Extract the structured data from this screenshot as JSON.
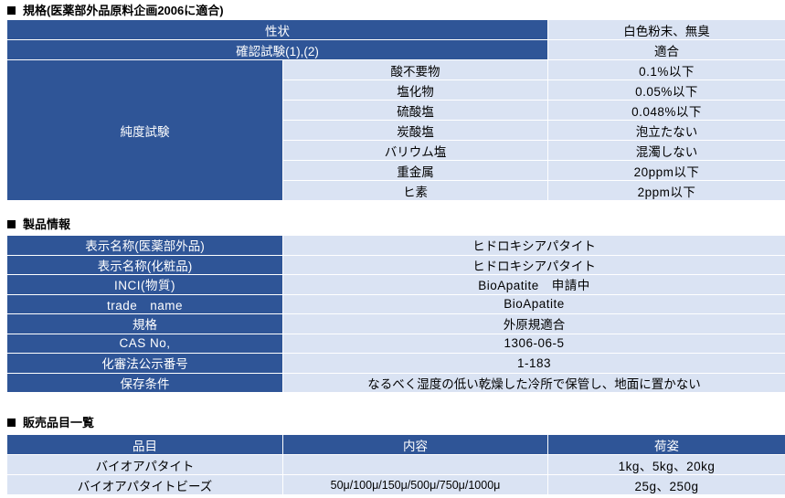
{
  "spec": {
    "title": "規格(医薬部外品原料企画2006に適合)",
    "rows": [
      {
        "label": "性状",
        "value": "白色粉末、無臭"
      },
      {
        "label": "確認試験(1),(2)",
        "value": "適合"
      }
    ],
    "purity": {
      "label": "純度試験",
      "items": [
        {
          "name": "酸不要物",
          "value": "0.1%以下"
        },
        {
          "name": "塩化物",
          "value": "0.05%以下"
        },
        {
          "name": "硫酸塩",
          "value": "0.048%以下"
        },
        {
          "name": "炭酸塩",
          "value": "泡立たない"
        },
        {
          "name": "バリウム塩",
          "value": "混濁しない"
        },
        {
          "name": "重金属",
          "value": "20ppm以下"
        },
        {
          "name": "ヒ素",
          "value": "2ppm以下"
        }
      ]
    }
  },
  "product": {
    "title": "製品情報",
    "rows": [
      {
        "label": "表示名称(医薬部外品)",
        "value": "ヒドロキシアパタイト"
      },
      {
        "label": "表示名称(化粧品)",
        "value": "ヒドロキシアパタイト"
      },
      {
        "label": "INCI(物質)",
        "value": "BioApatite　申請中"
      },
      {
        "label": "trade　name",
        "value": "BioApatite"
      },
      {
        "label": "規格",
        "value": "外原規適合"
      },
      {
        "label": "CAS No,",
        "value": "1306-06-5"
      },
      {
        "label": "化審法公示番号",
        "value": "1-183"
      },
      {
        "label": "保存条件",
        "value": "なるべく湿度の低い乾燥した冷所で保管し、地面に置かない"
      }
    ]
  },
  "sales": {
    "title": "販売品目一覧",
    "headers": [
      "品目",
      "内容",
      "荷姿"
    ],
    "rows": [
      {
        "item": "バイオアパタイト",
        "content": "",
        "package": "1kg、5kg、20kg"
      },
      {
        "item": "バイオアパタイトビーズ",
        "content": "50μ/100μ/150μ/500μ/750μ/1000μ",
        "package": "25g、250g"
      }
    ]
  }
}
